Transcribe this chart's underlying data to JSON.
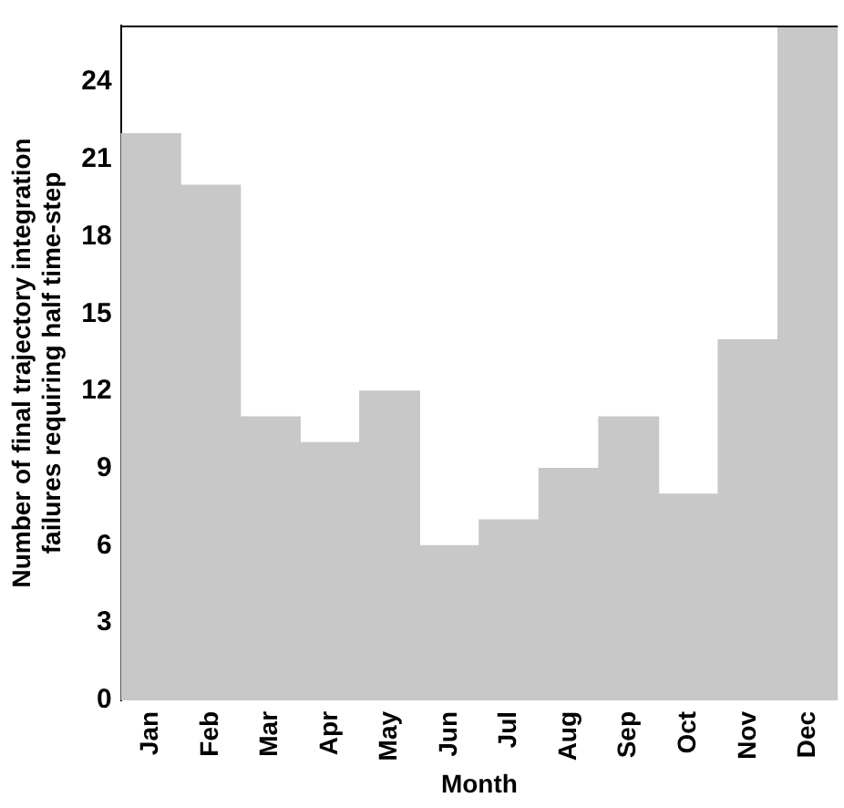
{
  "chart_data": {
    "type": "bar",
    "xlabel": "Month",
    "ylabel": "Number of final trajectory integration\nfailures requiring half time-step",
    "categories": [
      "Jan",
      "Feb",
      "Mar",
      "Apr",
      "May",
      "Jun",
      "Jul",
      "Aug",
      "Sep",
      "Oct",
      "Nov",
      "Dec"
    ],
    "values": [
      22,
      20,
      11,
      10,
      12,
      6,
      7,
      9,
      11,
      8,
      14,
      26.2
    ],
    "color": "#c8c8c8",
    "ylim": [
      0,
      26.2
    ],
    "yticks": [
      0,
      3,
      6,
      9,
      12,
      15,
      18,
      21,
      24
    ],
    "grid": false,
    "legend": false
  }
}
